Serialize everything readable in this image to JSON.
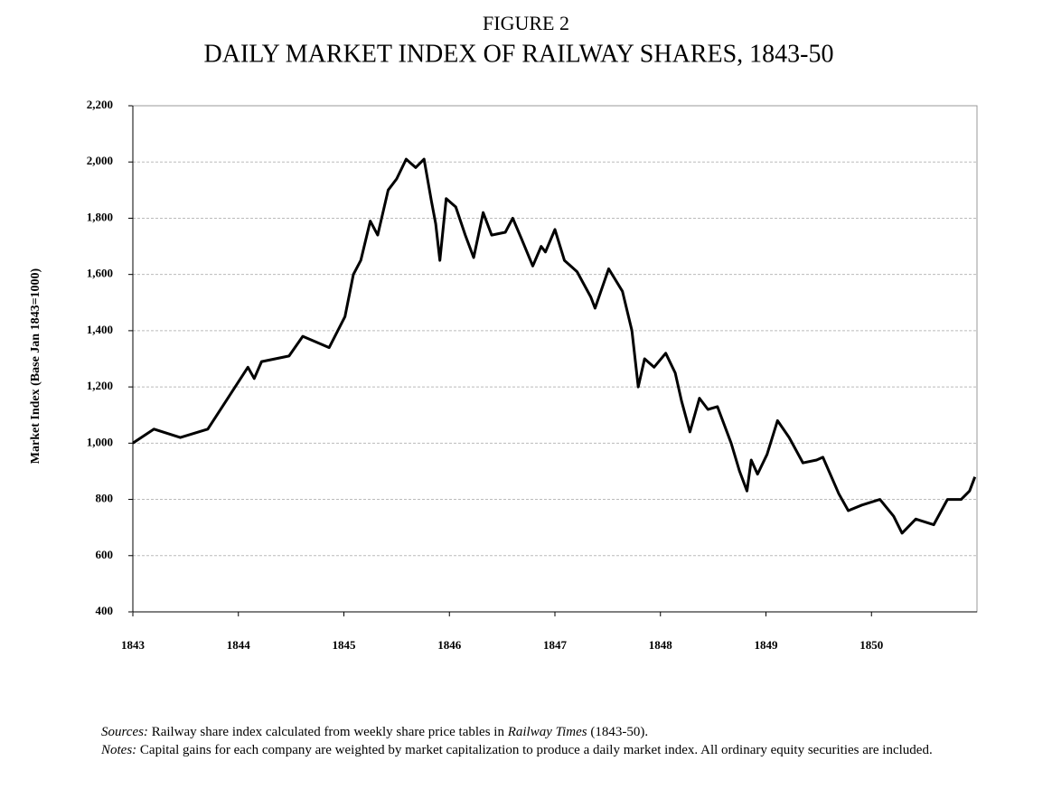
{
  "chart_data": {
    "type": "line",
    "title": "FIGURE 2",
    "subtitle": "DAILY MARKET INDEX OF RAILWAY SHARES, 1843-50",
    "y_label": "Market Index (Base Jan 1843=1000)",
    "xlim": [
      1843,
      1851
    ],
    "xticks": [
      1843,
      1844,
      1845,
      1846,
      1847,
      1848,
      1849,
      1850
    ],
    "ylim": [
      400,
      2200
    ],
    "yticks": [
      400,
      600,
      800,
      {
        "value": 1000,
        "label": "1,000"
      },
      {
        "value": 1200,
        "label": "1,200"
      },
      {
        "value": 1400,
        "label": "1,400"
      },
      {
        "value": 1600,
        "label": "1,600"
      },
      {
        "value": 1800,
        "label": "1,800"
      },
      {
        "value": 2000,
        "label": "2,000"
      },
      {
        "value": 2200,
        "label": "2,200"
      }
    ],
    "grid": true,
    "series": [
      {
        "color": "#000000",
        "x": [
          1843.0,
          1843.2,
          1843.45,
          1843.71,
          1843.97,
          1844.09,
          1844.15,
          1844.22,
          1844.48,
          1844.61,
          1844.86,
          1845.01,
          1845.09,
          1845.16,
          1845.25,
          1845.32,
          1845.42,
          1845.5,
          1845.59,
          1845.68,
          1845.76,
          1845.83,
          1845.87,
          1845.91,
          1845.97,
          1846.06,
          1846.15,
          1846.23,
          1846.32,
          1846.4,
          1846.53,
          1846.6,
          1846.68,
          1846.79,
          1846.87,
          1846.91,
          1847.0,
          1847.09,
          1847.21,
          1847.34,
          1847.38,
          1847.51,
          1847.64,
          1847.73,
          1847.79,
          1847.85,
          1847.94,
          1848.05,
          1848.14,
          1848.2,
          1848.28,
          1848.37,
          1848.45,
          1848.54,
          1848.67,
          1848.75,
          1848.82,
          1848.86,
          1848.92,
          1849.01,
          1849.11,
          1849.22,
          1849.35,
          1849.48,
          1849.54,
          1849.69,
          1849.78,
          1849.91,
          1850.08,
          1850.21,
          1850.29,
          1850.42,
          1850.59,
          1850.72,
          1850.85,
          1850.93,
          1850.98
        ],
        "values": [
          1000,
          1050,
          1020,
          1050,
          1200,
          1270,
          1230,
          1290,
          1310,
          1380,
          1340,
          1450,
          1600,
          1650,
          1790,
          1740,
          1900,
          1940,
          2010,
          1980,
          2010,
          1860,
          1780,
          1650,
          1870,
          1840,
          1740,
          1660,
          1820,
          1740,
          1750,
          1800,
          1730,
          1630,
          1700,
          1680,
          1760,
          1650,
          1610,
          1520,
          1480,
          1620,
          1540,
          1400,
          1200,
          1300,
          1270,
          1320,
          1250,
          1150,
          1040,
          1160,
          1120,
          1130,
          1000,
          900,
          830,
          940,
          890,
          960,
          1080,
          1020,
          930,
          940,
          950,
          820,
          760,
          780,
          800,
          740,
          680,
          730,
          710,
          800,
          800,
          830,
          880
        ]
      }
    ]
  },
  "footnotes": {
    "sources_label": "Sources:",
    "sources_text": "Railway share index calculated from weekly share price tables in",
    "sources_italic": "Railway Times",
    "sources_end": "(1843-50).",
    "notes_label": "Notes:",
    "notes_text": "Capital gains for each company are weighted by market capitalization to produce a daily market index. All ordinary equity securities are included."
  }
}
